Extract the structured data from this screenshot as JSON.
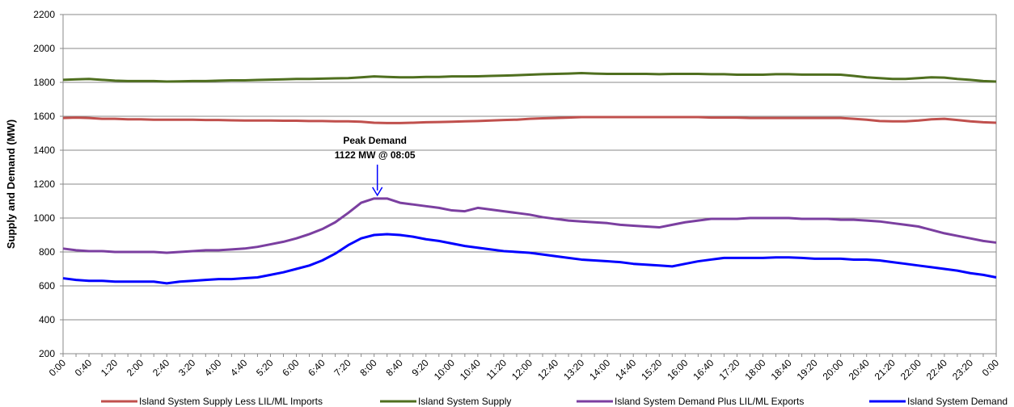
{
  "chart_data": {
    "type": "line",
    "y_label": "Supply and Demand (MW)",
    "ylim": [
      200,
      2200
    ],
    "yticks": [
      200,
      400,
      600,
      800,
      1000,
      1200,
      1400,
      1600,
      1800,
      2000,
      2200
    ],
    "grid": true,
    "legend": "bottom",
    "annotation": {
      "title": "Peak Demand",
      "text": "1122 MW @ 08:05"
    },
    "categories": [
      "0:00",
      null,
      "0:40",
      null,
      "1:20",
      null,
      "2:00",
      null,
      "2:40",
      null,
      "3:20",
      null,
      "4:00",
      null,
      "4:40",
      null,
      "5:20",
      null,
      "6:00",
      null,
      "6:40",
      null,
      "7:20",
      null,
      "8:00",
      null,
      "8:40",
      null,
      "9:20",
      null,
      "10:00",
      null,
      "10:40",
      null,
      "11:20",
      null,
      "12:00",
      null,
      "12:40",
      null,
      "13:20",
      null,
      "14:00",
      null,
      "14:40",
      null,
      "15:20",
      null,
      "16:00",
      null,
      "16:40",
      null,
      "17:20",
      null,
      "18:00",
      null,
      "18:40",
      null,
      "19:20",
      null,
      "20:00",
      null,
      "20:40",
      null,
      "21:20",
      null,
      "22:00",
      null,
      "22:40",
      null,
      "23:20",
      null,
      "0:00"
    ],
    "series": [
      {
        "name": "Island System Supply Less LIL/ML Imports",
        "color": "#c0504d",
        "values": [
          1590,
          1592,
          1590,
          1585,
          1585,
          1582,
          1582,
          1580,
          1580,
          1580,
          1580,
          1578,
          1578,
          1576,
          1575,
          1575,
          1575,
          1574,
          1574,
          1572,
          1572,
          1570,
          1570,
          1568,
          1562,
          1560,
          1560,
          1562,
          1565,
          1566,
          1568,
          1570,
          1572,
          1575,
          1578,
          1580,
          1585,
          1588,
          1590,
          1592,
          1595,
          1595,
          1595,
          1595,
          1595,
          1595,
          1595,
          1595,
          1595,
          1595,
          1592,
          1592,
          1592,
          1590,
          1590,
          1590,
          1590,
          1590,
          1590,
          1590,
          1590,
          1585,
          1580,
          1572,
          1570,
          1570,
          1575,
          1582,
          1585,
          1578,
          1570,
          1565,
          1562
        ]
      },
      {
        "name": "Island System Supply",
        "color": "#4f6f1f",
        "values": [
          1815,
          1818,
          1820,
          1815,
          1810,
          1808,
          1808,
          1808,
          1805,
          1806,
          1808,
          1808,
          1810,
          1812,
          1812,
          1814,
          1816,
          1818,
          1820,
          1820,
          1822,
          1824,
          1825,
          1830,
          1835,
          1832,
          1830,
          1830,
          1832,
          1832,
          1835,
          1835,
          1836,
          1838,
          1840,
          1842,
          1845,
          1848,
          1850,
          1852,
          1855,
          1852,
          1850,
          1850,
          1850,
          1850,
          1848,
          1850,
          1850,
          1850,
          1848,
          1848,
          1845,
          1845,
          1845,
          1848,
          1848,
          1846,
          1846,
          1846,
          1845,
          1838,
          1830,
          1825,
          1820,
          1820,
          1825,
          1830,
          1828,
          1820,
          1815,
          1808,
          1805
        ]
      },
      {
        "name": "Island System Demand Plus LIL/ML Exports",
        "color": "#7b3fa0",
        "values": [
          820,
          810,
          805,
          805,
          800,
          800,
          800,
          800,
          795,
          800,
          805,
          810,
          810,
          815,
          820,
          830,
          845,
          860,
          880,
          905,
          935,
          975,
          1030,
          1090,
          1115,
          1115,
          1090,
          1080,
          1070,
          1060,
          1045,
          1040,
          1060,
          1050,
          1040,
          1030,
          1020,
          1005,
          995,
          985,
          980,
          975,
          970,
          960,
          955,
          950,
          945,
          960,
          975,
          985,
          995,
          995,
          995,
          1000,
          1000,
          1000,
          1000,
          995,
          995,
          995,
          990,
          990,
          985,
          980,
          970,
          960,
          950,
          930,
          910,
          895,
          880,
          865,
          855
        ]
      },
      {
        "name": "Island System Demand",
        "color": "#0000ff",
        "values": [
          645,
          635,
          630,
          630,
          625,
          625,
          625,
          625,
          615,
          625,
          630,
          635,
          640,
          640,
          645,
          650,
          665,
          680,
          700,
          720,
          750,
          790,
          840,
          880,
          900,
          905,
          900,
          890,
          875,
          865,
          850,
          835,
          825,
          815,
          805,
          800,
          795,
          785,
          775,
          765,
          755,
          750,
          745,
          740,
          730,
          725,
          720,
          715,
          730,
          745,
          755,
          765,
          765,
          765,
          765,
          768,
          768,
          765,
          760,
          760,
          760,
          755,
          755,
          750,
          740,
          730,
          720,
          710,
          700,
          690,
          675,
          665,
          650
        ]
      }
    ]
  }
}
